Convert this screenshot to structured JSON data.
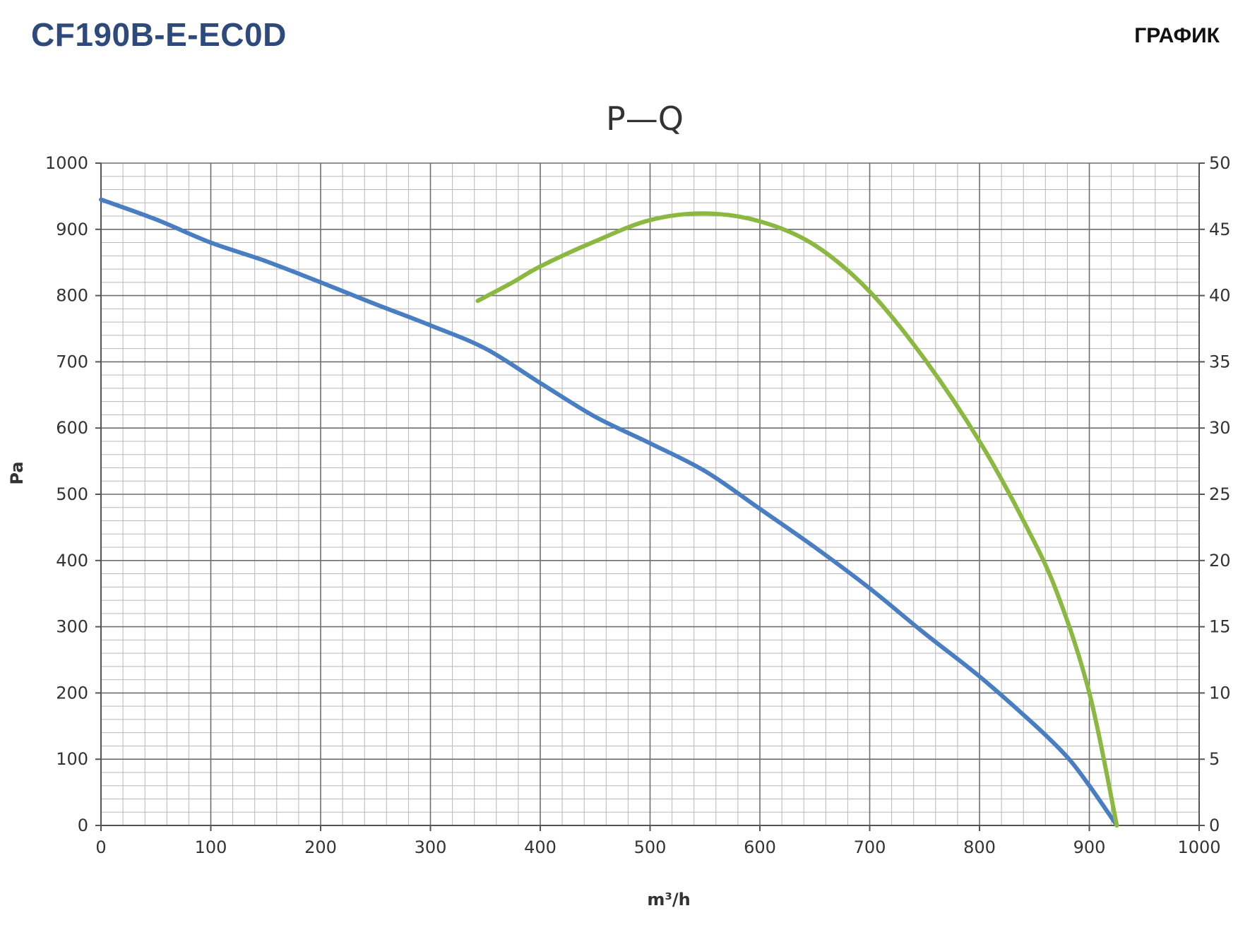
{
  "header": {
    "model": "CF190B-E-EC0D",
    "section": "ГРАФИК"
  },
  "chart_data": {
    "type": "line",
    "title": "P—Q",
    "xlabel": "m³/h",
    "ylabel": "Pa",
    "xlim": [
      0,
      1000
    ],
    "ylim": [
      0,
      1000
    ],
    "y2lim": [
      0,
      50
    ],
    "x_ticks": [
      0,
      100,
      200,
      300,
      400,
      500,
      600,
      700,
      800,
      900,
      1000
    ],
    "y_ticks": [
      0,
      100,
      200,
      300,
      400,
      500,
      600,
      700,
      800,
      900,
      1000
    ],
    "y2_ticks": [
      0,
      5,
      10,
      15,
      20,
      25,
      30,
      35,
      40,
      45,
      50
    ],
    "grid": true,
    "series": [
      {
        "axis": "left",
        "color": "#4a7ec2",
        "points": [
          [
            0,
            945
          ],
          [
            50,
            915
          ],
          [
            100,
            880
          ],
          [
            150,
            852
          ],
          [
            200,
            820
          ],
          [
            250,
            787
          ],
          [
            300,
            755
          ],
          [
            350,
            720
          ],
          [
            400,
            668
          ],
          [
            450,
            617
          ],
          [
            500,
            577
          ],
          [
            550,
            535
          ],
          [
            600,
            478
          ],
          [
            650,
            420
          ],
          [
            700,
            358
          ],
          [
            750,
            290
          ],
          [
            800,
            225
          ],
          [
            850,
            152
          ],
          [
            880,
            103
          ],
          [
            900,
            60
          ],
          [
            925,
            0
          ]
        ]
      },
      {
        "axis": "right",
        "color": "#8ab840",
        "points": [
          [
            343,
            39.6
          ],
          [
            375,
            41.0
          ],
          [
            400,
            42.2
          ],
          [
            450,
            44.1
          ],
          [
            500,
            45.7
          ],
          [
            550,
            46.2
          ],
          [
            600,
            45.6
          ],
          [
            650,
            43.8
          ],
          [
            700,
            40.3
          ],
          [
            750,
            35.2
          ],
          [
            800,
            29.0
          ],
          [
            840,
            23.0
          ],
          [
            870,
            17.7
          ],
          [
            900,
            10.0
          ],
          [
            925,
            0
          ]
        ]
      }
    ]
  }
}
